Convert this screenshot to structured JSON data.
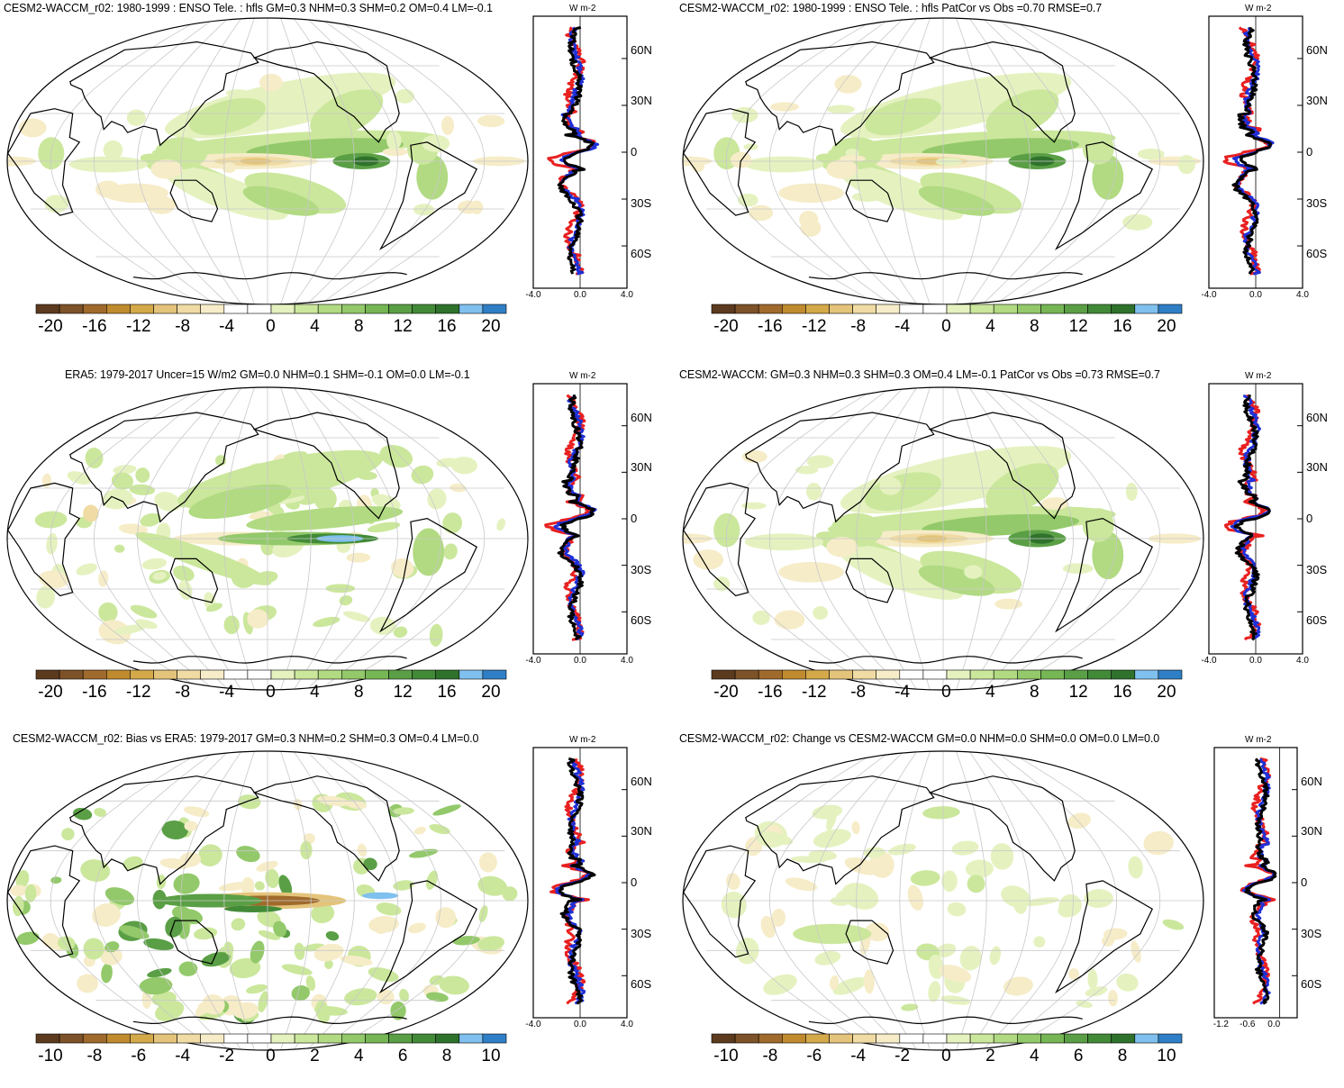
{
  "units": "W m-2",
  "lat_labels": [
    "60N",
    "30N",
    "0",
    "30S",
    "60S"
  ],
  "colors": {
    "browns": [
      "#5c3a1e",
      "#7e5228",
      "#a06a2c",
      "#c08b2f",
      "#d4a94a",
      "#e4c47a",
      "#efdba3",
      "#f6ecc8"
    ],
    "white": "#ffffff",
    "greens": [
      "#e5f2c0",
      "#cbe79c",
      "#b1da82",
      "#93c96a",
      "#76b655",
      "#5a9f45",
      "#428a38",
      "#2f722c"
    ],
    "blues": [
      "#7fc0ee",
      "#2f7fc7"
    ],
    "obs_line": "#000000",
    "model_a_line": "#1f2fd6",
    "model_b_line": "#e82020"
  },
  "panels": [
    {
      "id": "model-mean",
      "title": "CESM2-WACCM_r02: 1980-1999 : ENSO Tele. : hfls GM=0.3 NHM=0.3 SHM=0.2 OM=0.4 LM=-0.1",
      "colorbar_labels": [
        "-20",
        "-16",
        "-12",
        "-8",
        "-4",
        "0",
        "4",
        "8",
        "12",
        "16",
        "20"
      ],
      "zonal_ticks": [
        "-4.0",
        "0.0",
        "4.0"
      ],
      "zonal_range": [
        -4,
        4
      ],
      "pattern": "model"
    },
    {
      "id": "model-patcor",
      "title": "CESM2-WACCM_r02: 1980-1999 : ENSO Tele. : hfls PatCor vs Obs =0.70 RMSE=0.7",
      "colorbar_labels": [
        "-20",
        "-16",
        "-12",
        "-8",
        "-4",
        "0",
        "4",
        "8",
        "12",
        "16",
        "20"
      ],
      "zonal_ticks": [
        "-4.0",
        "0.0",
        "4.0"
      ],
      "zonal_range": [
        -4,
        4
      ],
      "pattern": "model"
    },
    {
      "id": "era5",
      "title": "ERA5: 1979-2017 Uncer=15 W/m2 GM=0.0 NHM=0.1 SHM=-0.1 OM=0.0 LM=-0.1",
      "colorbar_labels": [
        "-20",
        "-16",
        "-12",
        "-8",
        "-4",
        "0",
        "4",
        "8",
        "12",
        "16",
        "20"
      ],
      "zonal_ticks": [
        "-4.0",
        "0.0",
        "4.0"
      ],
      "zonal_range": [
        -4,
        4
      ],
      "pattern": "obs"
    },
    {
      "id": "cesm2-waccm",
      "title": "CESM2-WACCM: GM=0.3 NHM=0.3 SHM=0.3 OM=0.4 LM=-0.1 PatCor vs Obs =0.73 RMSE=0.7",
      "colorbar_labels": [
        "-20",
        "-16",
        "-12",
        "-8",
        "-4",
        "0",
        "4",
        "8",
        "12",
        "16",
        "20"
      ],
      "zonal_ticks": [
        "-4.0",
        "0.0",
        "4.0"
      ],
      "zonal_range": [
        -4,
        4
      ],
      "pattern": "model"
    },
    {
      "id": "bias",
      "title": "CESM2-WACCM_r02: Bias vs ERA5: 1979-2017 GM=0.3 NHM=0.2 SHM=0.3 OM=0.4 LM=0.0",
      "colorbar_labels": [
        "-10",
        "-8",
        "-6",
        "-4",
        "-2",
        "0",
        "2",
        "4",
        "6",
        "8",
        "10"
      ],
      "zonal_ticks": [
        "-4.0",
        "0.0",
        "4.0"
      ],
      "zonal_range": [
        -4,
        4
      ],
      "pattern": "bias"
    },
    {
      "id": "change",
      "title": "CESM2-WACCM_r02: Change vs CESM2-WACCM GM=0.0 NHM=0.0 SHM=0.0 OM=0.0 LM=0.0",
      "colorbar_labels": [
        "-10",
        "-8",
        "-6",
        "-4",
        "-2",
        "0",
        "2",
        "4",
        "6",
        "8",
        "10"
      ],
      "zonal_ticks": [
        "-1.2",
        "-0.6",
        "0.0"
      ],
      "zonal_range": [
        -1.5,
        0.4
      ],
      "pattern": "change"
    }
  ]
}
